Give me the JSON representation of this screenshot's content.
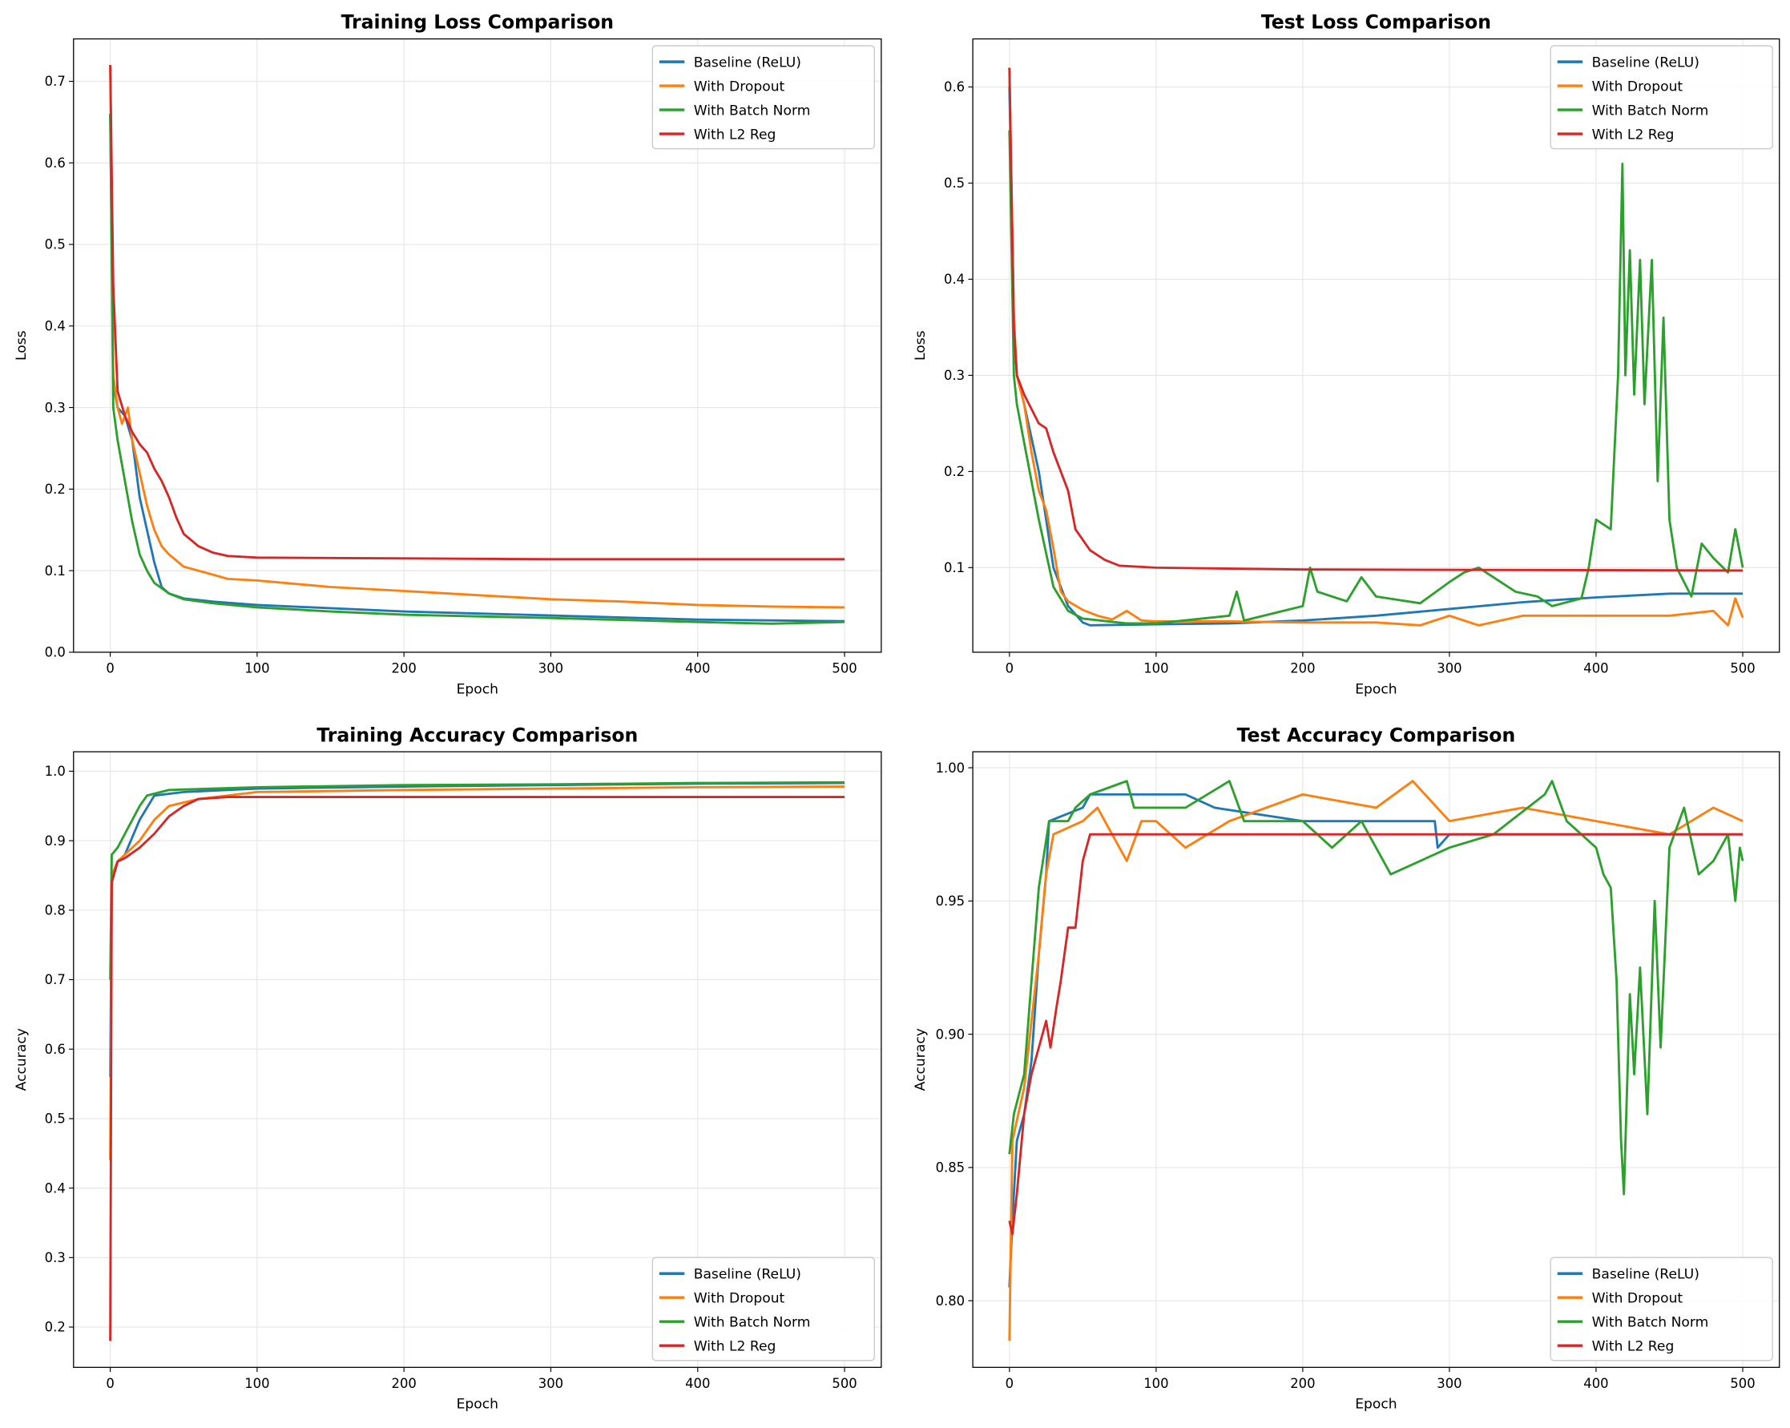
{
  "colors": {
    "Baseline (ReLU)": "#1f77b4",
    "With Dropout": "#ff7f0e",
    "With Batch Norm": "#2ca02c",
    "With L2 Reg": "#d62728"
  },
  "chart_data": [
    {
      "type": "line",
      "title": "Training Loss Comparison",
      "xlabel": "Epoch",
      "ylabel": "Loss",
      "xlim": [
        -25,
        525
      ],
      "ylim": [
        0,
        0.752
      ],
      "xticks": [
        0,
        100,
        200,
        300,
        400,
        500
      ],
      "yticks": [
        "0.0",
        "0.1",
        "0.2",
        "0.3",
        "0.4",
        "0.5",
        "0.6",
        "0.7"
      ],
      "grid": true,
      "legend": "top-right",
      "series": [
        {
          "name": "Baseline (ReLU)",
          "x": [
            0,
            2,
            5,
            10,
            15,
            20,
            25,
            30,
            35,
            40,
            50,
            70,
            100,
            200,
            300,
            400,
            500
          ],
          "y": [
            0.66,
            0.33,
            0.3,
            0.29,
            0.26,
            0.19,
            0.15,
            0.11,
            0.08,
            0.072,
            0.066,
            0.062,
            0.058,
            0.05,
            0.045,
            0.04,
            0.038
          ]
        },
        {
          "name": "With Dropout",
          "x": [
            0,
            2,
            5,
            8,
            12,
            15,
            20,
            25,
            30,
            35,
            40,
            50,
            60,
            80,
            100,
            150,
            200,
            250,
            300,
            350,
            400,
            450,
            500
          ],
          "y": [
            0.72,
            0.34,
            0.3,
            0.28,
            0.3,
            0.26,
            0.22,
            0.18,
            0.15,
            0.13,
            0.12,
            0.105,
            0.1,
            0.09,
            0.088,
            0.08,
            0.075,
            0.07,
            0.065,
            0.062,
            0.058,
            0.056,
            0.055
          ]
        },
        {
          "name": "With Batch Norm",
          "x": [
            0,
            2,
            5,
            10,
            15,
            20,
            25,
            30,
            40,
            50,
            70,
            100,
            150,
            200,
            300,
            400,
            450,
            500
          ],
          "y": [
            0.66,
            0.3,
            0.26,
            0.21,
            0.16,
            0.12,
            0.1,
            0.085,
            0.072,
            0.065,
            0.06,
            0.055,
            0.05,
            0.046,
            0.042,
            0.037,
            0.035,
            0.037
          ]
        },
        {
          "name": "With L2 Reg",
          "x": [
            0,
            2,
            5,
            10,
            15,
            20,
            25,
            30,
            35,
            40,
            45,
            50,
            60,
            70,
            80,
            100,
            200,
            300,
            500
          ],
          "y": [
            0.72,
            0.45,
            0.32,
            0.29,
            0.27,
            0.255,
            0.245,
            0.225,
            0.21,
            0.19,
            0.165,
            0.145,
            0.13,
            0.122,
            0.118,
            0.116,
            0.115,
            0.114,
            0.114
          ]
        }
      ]
    },
    {
      "type": "line",
      "title": "Test Loss Comparison",
      "xlabel": "Epoch",
      "ylabel": "Loss",
      "xlim": [
        -25,
        525
      ],
      "ylim": [
        0.012,
        0.65
      ],
      "xticks": [
        0,
        100,
        200,
        300,
        400,
        500
      ],
      "yticks": [
        "0.1",
        "0.2",
        "0.3",
        "0.4",
        "0.5",
        "0.6"
      ],
      "grid": true,
      "legend": "top-right",
      "series": [
        {
          "name": "Baseline (ReLU)",
          "x": [
            0,
            3,
            5,
            10,
            20,
            25,
            30,
            40,
            50,
            55,
            100,
            150,
            200,
            250,
            300,
            350,
            400,
            450,
            500
          ],
          "y": [
            0.6,
            0.36,
            0.3,
            0.27,
            0.2,
            0.15,
            0.1,
            0.06,
            0.043,
            0.04,
            0.041,
            0.042,
            0.045,
            0.05,
            0.057,
            0.064,
            0.069,
            0.073,
            0.073
          ]
        },
        {
          "name": "With Dropout",
          "x": [
            0,
            3,
            5,
            10,
            15,
            20,
            25,
            30,
            35,
            40,
            50,
            60,
            70,
            80,
            90,
            100,
            150,
            200,
            250,
            280,
            300,
            320,
            350,
            400,
            450,
            480,
            490,
            495,
            500
          ],
          "y": [
            0.62,
            0.36,
            0.3,
            0.27,
            0.22,
            0.18,
            0.16,
            0.12,
            0.075,
            0.065,
            0.056,
            0.05,
            0.046,
            0.055,
            0.045,
            0.044,
            0.044,
            0.043,
            0.043,
            0.04,
            0.05,
            0.04,
            0.05,
            0.05,
            0.05,
            0.055,
            0.04,
            0.068,
            0.048
          ]
        },
        {
          "name": "With Batch Norm",
          "x": [
            0,
            3,
            5,
            10,
            20,
            30,
            40,
            50,
            80,
            100,
            150,
            155,
            160,
            200,
            205,
            210,
            230,
            240,
            250,
            280,
            300,
            310,
            320,
            330,
            345,
            360,
            370,
            390,
            395,
            400,
            410,
            415,
            418,
            420,
            423,
            426,
            430,
            433,
            438,
            442,
            446,
            450,
            455,
            465,
            472,
            480,
            490,
            495,
            500
          ],
          "y": [
            0.555,
            0.3,
            0.27,
            0.23,
            0.15,
            0.08,
            0.055,
            0.047,
            0.042,
            0.042,
            0.05,
            0.075,
            0.045,
            0.06,
            0.1,
            0.075,
            0.065,
            0.09,
            0.07,
            0.063,
            0.085,
            0.095,
            0.1,
            0.09,
            0.075,
            0.07,
            0.06,
            0.068,
            0.1,
            0.15,
            0.14,
            0.3,
            0.52,
            0.3,
            0.43,
            0.28,
            0.42,
            0.27,
            0.42,
            0.19,
            0.36,
            0.15,
            0.1,
            0.07,
            0.125,
            0.11,
            0.095,
            0.14,
            0.1
          ]
        },
        {
          "name": "With L2 Reg",
          "x": [
            0,
            3,
            5,
            10,
            20,
            25,
            30,
            40,
            45,
            55,
            65,
            75,
            100,
            200,
            500
          ],
          "y": [
            0.62,
            0.35,
            0.3,
            0.28,
            0.25,
            0.245,
            0.22,
            0.18,
            0.14,
            0.118,
            0.108,
            0.102,
            0.1,
            0.098,
            0.097
          ]
        }
      ]
    },
    {
      "type": "line",
      "title": "Training Accuracy Comparison",
      "xlabel": "Epoch",
      "ylabel": "Accuracy",
      "xlim": [
        -25,
        525
      ],
      "ylim": [
        0.142,
        1.028
      ],
      "xticks": [
        0,
        100,
        200,
        300,
        400,
        500
      ],
      "yticks": [
        "0.2",
        "0.3",
        "0.4",
        "0.5",
        "0.6",
        "0.7",
        "0.8",
        "0.9",
        "1.0"
      ],
      "grid": true,
      "legend": "bottom-right",
      "series": [
        {
          "name": "Baseline (ReLU)",
          "x": [
            0,
            1,
            5,
            10,
            20,
            30,
            50,
            100,
            200,
            300,
            400,
            500
          ],
          "y": [
            0.56,
            0.84,
            0.87,
            0.88,
            0.93,
            0.965,
            0.97,
            0.975,
            0.978,
            0.98,
            0.982,
            0.983
          ]
        },
        {
          "name": "With Dropout",
          "x": [
            0,
            1,
            5,
            10,
            20,
            30,
            40,
            60,
            100,
            200,
            300,
            400,
            500
          ],
          "y": [
            0.44,
            0.85,
            0.87,
            0.88,
            0.9,
            0.93,
            0.95,
            0.96,
            0.97,
            0.973,
            0.975,
            0.977,
            0.978
          ]
        },
        {
          "name": "With Batch Norm",
          "x": [
            0,
            1,
            5,
            10,
            20,
            25,
            40,
            100,
            200,
            300,
            400,
            500
          ],
          "y": [
            0.7,
            0.88,
            0.89,
            0.91,
            0.95,
            0.965,
            0.973,
            0.977,
            0.98,
            0.981,
            0.983,
            0.984
          ]
        },
        {
          "name": "With L2 Reg",
          "x": [
            0,
            1,
            5,
            10,
            20,
            30,
            40,
            50,
            60,
            80,
            500
          ],
          "y": [
            0.18,
            0.84,
            0.87,
            0.875,
            0.89,
            0.91,
            0.935,
            0.95,
            0.96,
            0.963,
            0.963
          ]
        }
      ]
    },
    {
      "type": "line",
      "title": "Test Accuracy Comparison",
      "xlabel": "Epoch",
      "ylabel": "Accuracy",
      "xlim": [
        -25,
        525
      ],
      "ylim": [
        0.775,
        1.006
      ],
      "xticks": [
        0,
        100,
        200,
        300,
        400,
        500
      ],
      "yticks": [
        "0.80",
        "0.85",
        "0.90",
        "0.95",
        "1.00"
      ],
      "grid": true,
      "legend": "bottom-right",
      "series": [
        {
          "name": "Baseline (ReLU)",
          "x": [
            0,
            2,
            5,
            10,
            15,
            20,
            25,
            27,
            50,
            55,
            120,
            140,
            200,
            290,
            292,
            300,
            400,
            470,
            500
          ],
          "y": [
            0.805,
            0.83,
            0.86,
            0.87,
            0.89,
            0.93,
            0.96,
            0.98,
            0.985,
            0.99,
            0.99,
            0.985,
            0.98,
            0.98,
            0.97,
            0.975,
            0.975,
            0.975,
            0.975
          ]
        },
        {
          "name": "With Dropout",
          "x": [
            0,
            2,
            10,
            20,
            25,
            30,
            50,
            60,
            80,
            90,
            100,
            120,
            150,
            200,
            250,
            275,
            300,
            350,
            400,
            450,
            480,
            500
          ],
          "y": [
            0.785,
            0.86,
            0.88,
            0.93,
            0.96,
            0.975,
            0.98,
            0.985,
            0.965,
            0.98,
            0.98,
            0.97,
            0.98,
            0.99,
            0.985,
            0.995,
            0.98,
            0.985,
            0.98,
            0.975,
            0.985,
            0.98
          ]
        },
        {
          "name": "With Batch Norm",
          "x": [
            0,
            3,
            10,
            20,
            27,
            40,
            45,
            55,
            80,
            85,
            120,
            150,
            160,
            200,
            220,
            240,
            260,
            300,
            330,
            365,
            370,
            380,
            400,
            405,
            410,
            414,
            417,
            419,
            423,
            426,
            430,
            435,
            440,
            444,
            450,
            460,
            470,
            480,
            490,
            495,
            498,
            500
          ],
          "y": [
            0.855,
            0.87,
            0.885,
            0.955,
            0.98,
            0.98,
            0.985,
            0.99,
            0.995,
            0.985,
            0.985,
            0.995,
            0.98,
            0.98,
            0.97,
            0.98,
            0.96,
            0.97,
            0.975,
            0.99,
            0.995,
            0.98,
            0.97,
            0.96,
            0.955,
            0.92,
            0.86,
            0.84,
            0.915,
            0.885,
            0.925,
            0.87,
            0.95,
            0.895,
            0.97,
            0.985,
            0.96,
            0.965,
            0.975,
            0.95,
            0.97,
            0.965
          ]
        },
        {
          "name": "With L2 Reg",
          "x": [
            0,
            2,
            5,
            10,
            15,
            20,
            25,
            28,
            32,
            35,
            40,
            45,
            50,
            55,
            500
          ],
          "y": [
            0.83,
            0.825,
            0.84,
            0.87,
            0.885,
            0.895,
            0.905,
            0.895,
            0.91,
            0.92,
            0.94,
            0.94,
            0.965,
            0.975,
            0.975
          ]
        }
      ]
    }
  ]
}
